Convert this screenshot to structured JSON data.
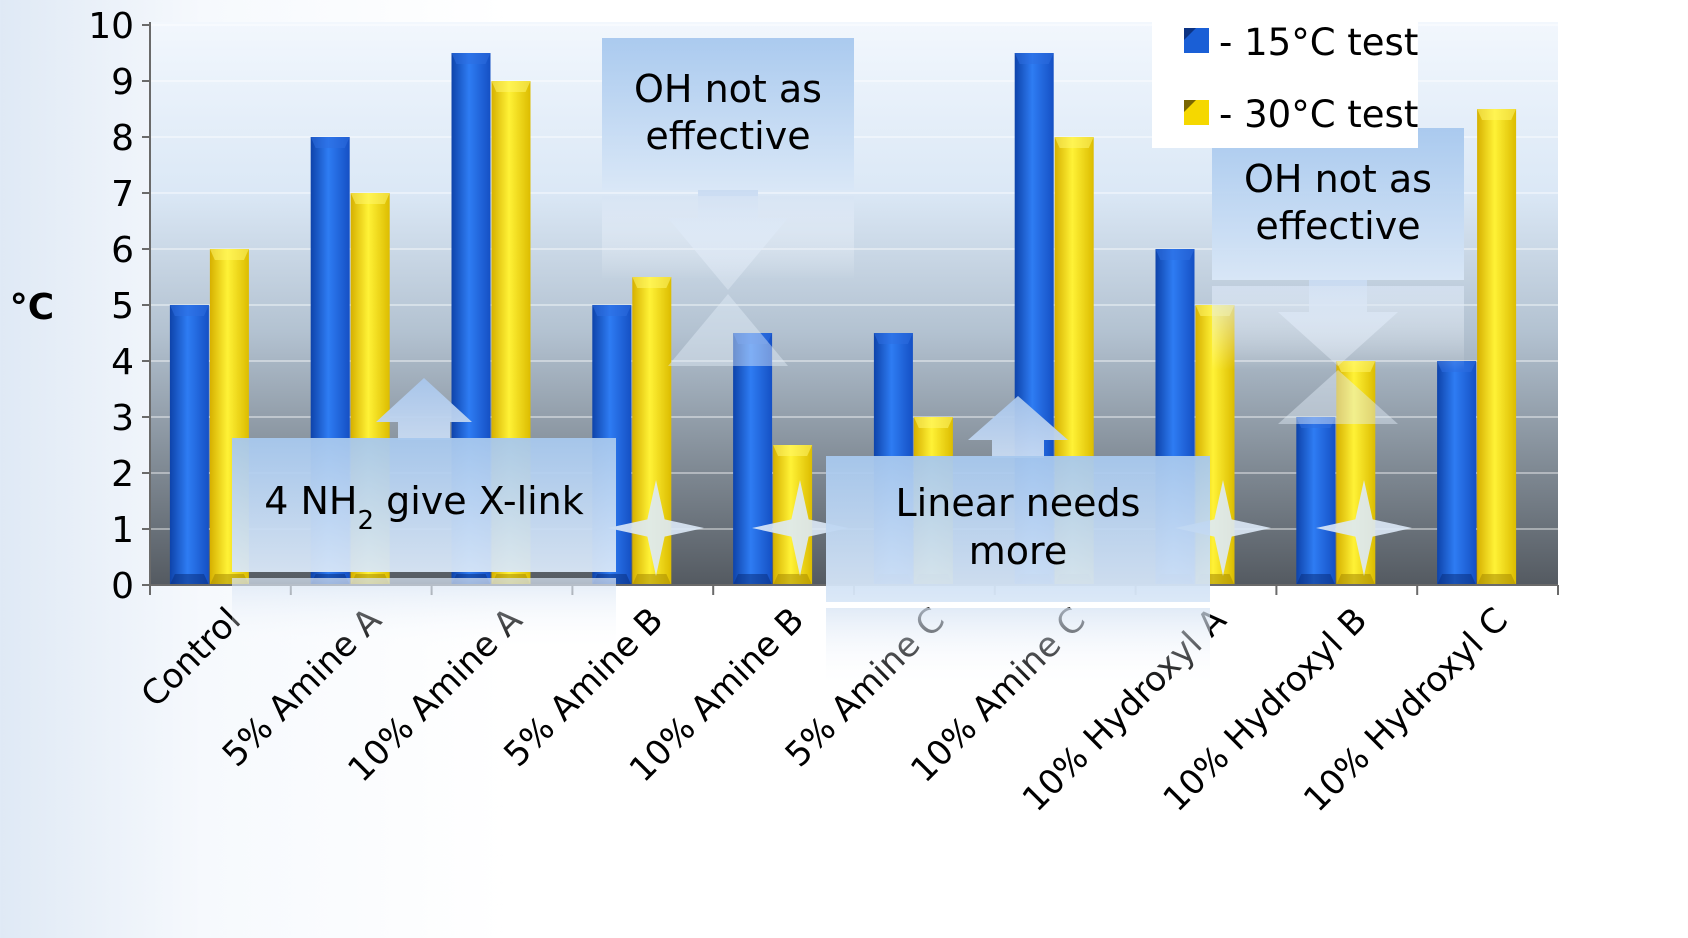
{
  "chart_data": {
    "type": "bar",
    "title": "",
    "xlabel": "",
    "ylabel": "°C",
    "ylim": [
      0,
      10
    ],
    "yticks": [
      0,
      1,
      2,
      3,
      4,
      5,
      6,
      7,
      8,
      9,
      10
    ],
    "grid": true,
    "legend_position": "top-right",
    "categories": [
      "Control",
      "5% Amine A",
      "10% Amine A",
      "5% Amine B",
      "10% Amine B",
      "5% Amine C",
      "10% Amine C",
      "10% Hydroxyl A",
      "10% Hydroxyl B",
      "10% Hydroxyl C"
    ],
    "series": [
      {
        "name": "- 15°C test",
        "color": "#1a5fd6",
        "values": [
          5,
          8,
          9.5,
          5,
          4.5,
          4.5,
          9.5,
          6,
          3,
          4
        ]
      },
      {
        "name": "- 30°C test",
        "color": "#f5d800",
        "values": [
          6,
          7,
          9,
          5.5,
          2.5,
          3,
          8,
          5,
          4,
          8.5
        ]
      }
    ],
    "annotations": [
      {
        "id": "oh-1",
        "lines": [
          "OH not as",
          "effective"
        ],
        "arrow": "down"
      },
      {
        "id": "oh-2",
        "lines": [
          "OH not as",
          "effective"
        ],
        "arrow": "down"
      },
      {
        "id": "nh2",
        "text_before": "4 NH",
        "subscript": "2",
        "text_after": " give X-link",
        "arrow": "up"
      },
      {
        "id": "linear",
        "lines": [
          "Linear needs",
          "more"
        ],
        "arrow": "up"
      }
    ]
  }
}
